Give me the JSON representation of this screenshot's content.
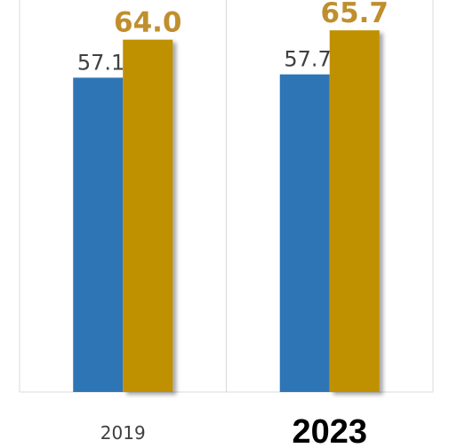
{
  "chart_data": {
    "type": "bar",
    "title": "",
    "xlabel": "",
    "ylabel": "",
    "categories": [
      "2019",
      "2023"
    ],
    "highlight_category": "2023",
    "series": [
      {
        "values": [
          57.1,
          57.7
        ],
        "data_labels": [
          "57.1",
          "57.7"
        ],
        "color": "#2e75b6"
      },
      {
        "values": [
          64.0,
          65.7
        ],
        "data_labels": [
          "64.0",
          "65.7"
        ],
        "color": "#bf9000"
      }
    ],
    "ylim": [
      0,
      70
    ],
    "grid": "vertical category separators",
    "legend": "none"
  }
}
